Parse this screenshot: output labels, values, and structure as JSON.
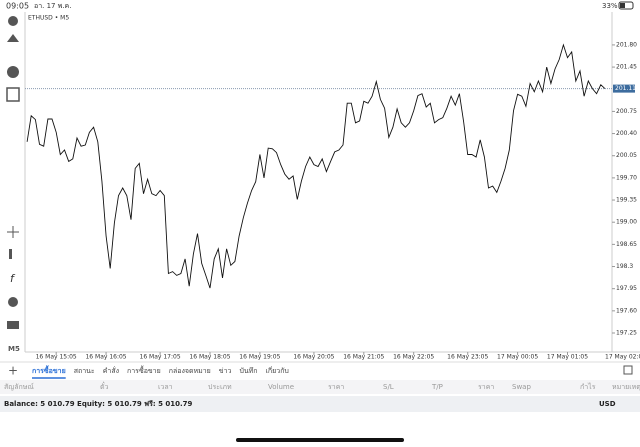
{
  "status_bar": {
    "time": "09:05",
    "date": "อา. 17 พ.ค.",
    "battery": "33%"
  },
  "sidebar": {
    "timeframe": "M5"
  },
  "chart_data": {
    "type": "line",
    "title": "ETHUSD • M5",
    "series": [
      {
        "name": "ETHUSD",
        "color": "#111111",
        "values": [
          200.27,
          200.68,
          200.62,
          200.23,
          200.2,
          200.63,
          200.63,
          200.42,
          200.07,
          200.14,
          199.96,
          200.0,
          200.33,
          200.2,
          200.22,
          200.42,
          200.5,
          200.27,
          199.65,
          198.78,
          198.27,
          198.99,
          199.42,
          199.54,
          199.42,
          199.04,
          199.85,
          199.93,
          199.45,
          199.68,
          199.45,
          199.42,
          199.5,
          199.42,
          198.19,
          198.22,
          198.16,
          198.19,
          198.42,
          197.99,
          198.5,
          198.82,
          198.35,
          198.16,
          197.96,
          198.42,
          198.58,
          198.12,
          198.58,
          198.32,
          198.38,
          198.78,
          199.07,
          199.3,
          199.5,
          199.64,
          200.07,
          199.7,
          200.17,
          200.16,
          200.1,
          199.91,
          199.76,
          199.68,
          199.73,
          199.36,
          199.65,
          199.88,
          200.03,
          199.91,
          199.88,
          200.0,
          199.8,
          199.96,
          200.11,
          200.14,
          200.22,
          200.88,
          200.88,
          200.57,
          200.6,
          200.91,
          200.88,
          200.99,
          201.22,
          200.94,
          200.8,
          200.34,
          200.5,
          200.79,
          200.57,
          200.5,
          200.57,
          200.76,
          201.0,
          201.03,
          200.82,
          200.88,
          200.57,
          200.62,
          200.65,
          200.8,
          200.99,
          200.85,
          201.03,
          200.59,
          200.07,
          200.07,
          200.03,
          200.3,
          200.03,
          199.54,
          199.57,
          199.47,
          199.65,
          199.85,
          200.14,
          200.76,
          201.02,
          200.99,
          200.83,
          201.19,
          201.06,
          201.23,
          201.06,
          201.45,
          201.19,
          201.42,
          201.57,
          201.8,
          201.6,
          201.69,
          201.23,
          201.39,
          200.99,
          201.23,
          201.11,
          201.03,
          201.17,
          201.11
        ]
      }
    ],
    "current_price": 201.11,
    "xlim": [
      -0.5,
      139.5
    ],
    "xticks": [
      {
        "value": 7,
        "label": "16 May 15:05"
      },
      {
        "value": 19,
        "label": "16 May 16:05"
      },
      {
        "value": 32,
        "label": "16 May 17:05"
      },
      {
        "value": 44,
        "label": "16 May 18:05"
      },
      {
        "value": 56,
        "label": "16 May 19:05"
      },
      {
        "value": 69,
        "label": "16 May 20:05"
      },
      {
        "value": 81,
        "label": "16 May 21:05"
      },
      {
        "value": 93,
        "label": "16 May 22:05"
      },
      {
        "value": 106,
        "label": "16 May 23:05"
      },
      {
        "value": 118,
        "label": "17 May 00:05"
      },
      {
        "value": 130,
        "label": "17 May 01:05"
      }
    ],
    "x_end_label": "17 May 02:0",
    "ylim": [
      196.95,
      202.32
    ],
    "yticks": [
      {
        "value": 201.8,
        "label": "201.80"
      },
      201.45,
      200.75,
      {
        "value": 200.4,
        "label": "200.40"
      },
      200.05,
      {
        "value": 199.7,
        "label": "199.70"
      },
      199.35,
      {
        "value": 199.0,
        "label": "199.00"
      },
      198.65,
      198.3,
      197.95,
      {
        "value": 197.6,
        "label": "197.60"
      },
      197.25
    ],
    "grid": false
  },
  "tabs": [
    "การซื้อขาย",
    "สถานะ",
    "คำสั่ง",
    "การซื้อขาย",
    "กล่องจดหมาย",
    "ข่าว",
    "บันทึก",
    "เกี่ยวกับ"
  ],
  "table": {
    "headers": [
      "สัญลักษณ์",
      "ตั๋ว",
      "เวลา",
      "ประเภท",
      "Volume",
      "ราคา",
      "S/L",
      "T/P",
      "ราคา",
      "Swap",
      "กำไร",
      "หมายเหตุ"
    ]
  },
  "footer": {
    "balance": "Balance: 5 010.79 Equity: 5 010.79 ฟรี: 5 010.79",
    "currency": "USD"
  }
}
